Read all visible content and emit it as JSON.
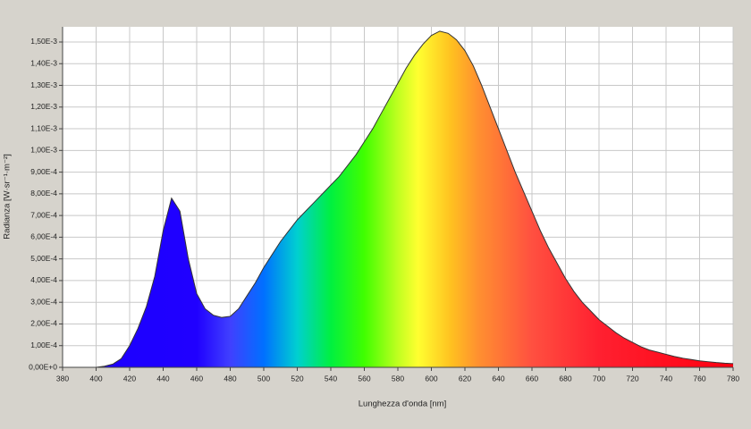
{
  "chart_data": {
    "type": "area",
    "x_label": "Lunghezza d'onda [nm]",
    "y_label": "Radianza [W·sr⁻¹·m⁻²]",
    "x": [
      380,
      385,
      390,
      395,
      400,
      405,
      410,
      415,
      420,
      425,
      430,
      435,
      440,
      445,
      450,
      455,
      460,
      465,
      470,
      475,
      480,
      485,
      490,
      495,
      500,
      505,
      510,
      515,
      520,
      525,
      530,
      535,
      540,
      545,
      550,
      555,
      560,
      565,
      570,
      575,
      580,
      585,
      590,
      595,
      600,
      605,
      610,
      615,
      620,
      625,
      630,
      635,
      640,
      645,
      650,
      655,
      660,
      665,
      670,
      675,
      680,
      685,
      690,
      695,
      700,
      705,
      710,
      715,
      720,
      725,
      730,
      735,
      740,
      745,
      750,
      755,
      760,
      765,
      770,
      775,
      780
    ],
    "values": [
      0,
      0,
      0,
      0,
      0,
      5e-06,
      1.5e-05,
      4e-05,
      0.0001,
      0.00018,
      0.00028,
      0.00042,
      0.00063,
      0.00078,
      0.00072,
      0.0005,
      0.00034,
      0.00027,
      0.00024,
      0.00023,
      0.000235,
      0.00027,
      0.00033,
      0.00039,
      0.00046,
      0.00052,
      0.00058,
      0.00063,
      0.00068,
      0.00072,
      0.00076,
      0.0008,
      0.00084,
      0.00088,
      0.00093,
      0.00098,
      0.00104,
      0.0011,
      0.00117,
      0.00124,
      0.00131,
      0.00138,
      0.00144,
      0.00149,
      0.00153,
      0.00155,
      0.00154,
      0.00151,
      0.00146,
      0.00139,
      0.0013,
      0.0012,
      0.0011,
      0.001,
      0.0009,
      0.00081,
      0.00072,
      0.00063,
      0.00055,
      0.00048,
      0.00041,
      0.00035,
      0.0003,
      0.00026,
      0.00022,
      0.00019,
      0.00016,
      0.000135,
      0.000115,
      9.5e-05,
      8e-05,
      7e-05,
      6e-05,
      5e-05,
      4.2e-05,
      3.6e-05,
      3e-05,
      2.6e-05,
      2.2e-05,
      1.9e-05,
      1.7e-05
    ],
    "xlim": [
      380,
      780
    ],
    "ylim": [
      0,
      0.00157
    ],
    "xticks": [
      380,
      400,
      420,
      440,
      460,
      480,
      500,
      520,
      540,
      560,
      580,
      600,
      620,
      640,
      660,
      680,
      700,
      720,
      740,
      760,
      780
    ],
    "yticks": [
      {
        "value": 0,
        "label": "0,00E+0"
      },
      {
        "value": 0.0001,
        "label": "1,00E-4"
      },
      {
        "value": 0.0002,
        "label": "2,00E-4"
      },
      {
        "value": 0.0003,
        "label": "3,00E-4"
      },
      {
        "value": 0.0004,
        "label": "4,00E-4"
      },
      {
        "value": 0.0005,
        "label": "5,00E-4"
      },
      {
        "value": 0.0006,
        "label": "6,00E-4"
      },
      {
        "value": 0.0007,
        "label": "7,00E-4"
      },
      {
        "value": 0.0008,
        "label": "8,00E-4"
      },
      {
        "value": 0.0009,
        "label": "9,00E-4"
      },
      {
        "value": 0.001,
        "label": "1,00E-3"
      },
      {
        "value": 0.0011,
        "label": "1,10E-3"
      },
      {
        "value": 0.0012,
        "label": "1,20E-3"
      },
      {
        "value": 0.0013,
        "label": "1,30E-3"
      },
      {
        "value": 0.0014,
        "label": "1,40E-3"
      },
      {
        "value": 0.0015,
        "label": "1,50E-3"
      }
    ],
    "grid": true
  }
}
